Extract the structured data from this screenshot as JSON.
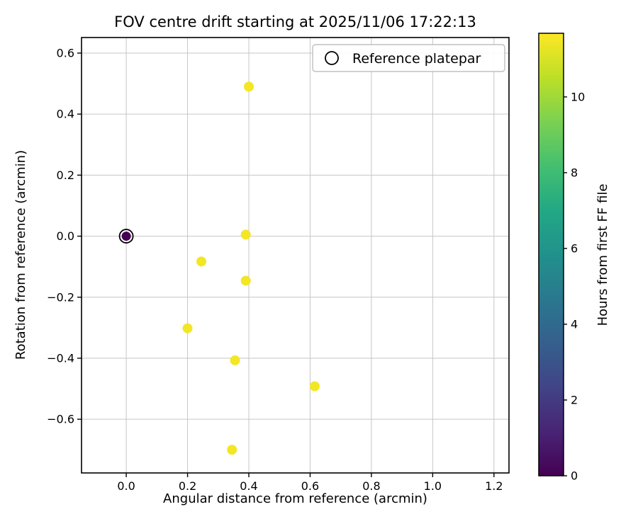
{
  "chart_data": {
    "type": "scatter",
    "title": "FOV centre drift starting at 2025/11/06 17:22:13",
    "xlabel": "Angular distance from reference (arcmin)",
    "ylabel": "Rotation from reference (arcmin)",
    "xlim": [
      -0.146,
      1.249
    ],
    "ylim": [
      -0.776,
      0.651
    ],
    "xticks": [
      0.0,
      0.2,
      0.4,
      0.6,
      0.8,
      1.0,
      1.2
    ],
    "yticks": [
      -0.6,
      -0.4,
      -0.2,
      0.0,
      0.2,
      0.4,
      0.6
    ],
    "grid": true,
    "grid_color": "#c6c6c6",
    "legend": {
      "label": "Reference platepar",
      "position": "upper right"
    },
    "colorbar": {
      "label": "Hours from first FF file",
      "min": 0,
      "max": 11.68,
      "ticks": [
        0,
        2,
        4,
        6,
        8,
        10
      ]
    },
    "colormap": {
      "name": "viridis",
      "stops": [
        [
          0.0,
          "#440154"
        ],
        [
          0.1,
          "#482475"
        ],
        [
          0.2,
          "#414487"
        ],
        [
          0.3,
          "#355f8d"
        ],
        [
          0.4,
          "#2a788e"
        ],
        [
          0.5,
          "#21918c"
        ],
        [
          0.6,
          "#22a884"
        ],
        [
          0.7,
          "#44bf70"
        ],
        [
          0.8,
          "#7ad151"
        ],
        [
          0.9,
          "#bddf26"
        ],
        [
          1.0,
          "#fde725"
        ]
      ]
    },
    "reference_point": {
      "x": 0.0,
      "y": 0.0,
      "hours": 0.0
    },
    "points": [
      {
        "x": 0.4,
        "y": 0.49,
        "hours": 11.5
      },
      {
        "x": 0.39,
        "y": 0.005,
        "hours": 11.5
      },
      {
        "x": 0.245,
        "y": -0.083,
        "hours": 11.5
      },
      {
        "x": 0.39,
        "y": -0.146,
        "hours": 11.5
      },
      {
        "x": 0.2,
        "y": -0.302,
        "hours": 11.5
      },
      {
        "x": 0.355,
        "y": -0.407,
        "hours": 11.5
      },
      {
        "x": 0.615,
        "y": -0.492,
        "hours": 11.5
      },
      {
        "x": 0.345,
        "y": -0.7,
        "hours": 11.5
      }
    ]
  }
}
